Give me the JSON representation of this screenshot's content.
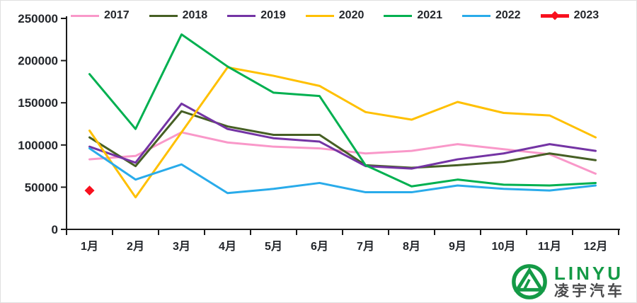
{
  "chart_data": {
    "type": "line",
    "title": "",
    "xlabel": "",
    "ylabel": "",
    "categories": [
      "1月",
      "2月",
      "3月",
      "4月",
      "5月",
      "6月",
      "7月",
      "8月",
      "9月",
      "10月",
      "11月",
      "12月"
    ],
    "ylim": [
      0,
      250000
    ],
    "ytick_interval": 50000,
    "ytick_labels": [
      "0",
      "50000",
      "100000",
      "150000",
      "200000",
      "250000"
    ],
    "grid": false,
    "legend_position": "top",
    "series": [
      {
        "name": "2017",
        "color": "#F998C9",
        "values": [
          83000,
          87000,
          115000,
          103000,
          98000,
          96000,
          90000,
          93000,
          101000,
          95000,
          89000,
          66000
        ]
      },
      {
        "name": "2018",
        "color": "#465F24",
        "values": [
          109000,
          75000,
          140000,
          122000,
          112000,
          112000,
          76000,
          73000,
          76000,
          80000,
          90000,
          82000
        ]
      },
      {
        "name": "2019",
        "color": "#7434A4",
        "values": [
          98000,
          79000,
          149000,
          119000,
          108000,
          104000,
          75000,
          72000,
          83000,
          90000,
          101000,
          93000
        ]
      },
      {
        "name": "2020",
        "color": "#FFC000",
        "values": [
          117000,
          38000,
          115000,
          192000,
          182000,
          170000,
          139000,
          130000,
          151000,
          138000,
          135000,
          109000
        ]
      },
      {
        "name": "2021",
        "color": "#00B050",
        "values": [
          184000,
          119000,
          231000,
          193000,
          162000,
          158000,
          76000,
          51000,
          59000,
          53000,
          52000,
          55000
        ]
      },
      {
        "name": "2022",
        "color": "#29ABEA",
        "values": [
          96000,
          59000,
          77000,
          43000,
          48000,
          55000,
          44000,
          44000,
          52000,
          48000,
          46000,
          52000
        ]
      },
      {
        "name": "2023",
        "color": "#F8101E",
        "marker": "diamond",
        "line_thick": true,
        "values": [
          46000,
          null,
          null,
          null,
          null,
          null,
          null,
          null,
          null,
          null,
          null,
          null
        ]
      }
    ]
  },
  "axis": {
    "line_color": "#1A1A1A",
    "label_color": "#23262B"
  },
  "logo": {
    "brand": "LINYU",
    "brand_cn": "凌宇汽车",
    "brand_color": "#149A46",
    "text_color": "#4A4A4C"
  }
}
